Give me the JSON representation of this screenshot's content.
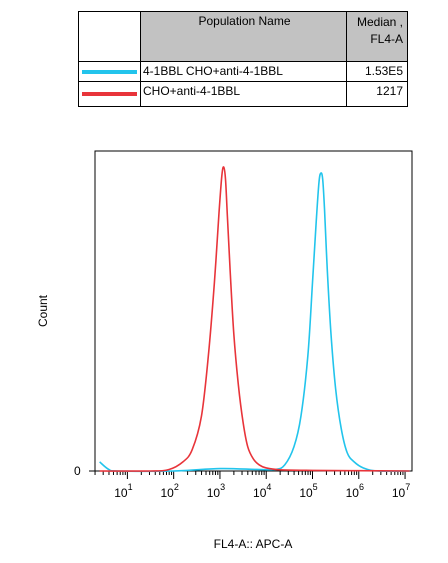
{
  "legend": {
    "header": {
      "name": "Population Name",
      "median_line1": "Median ,",
      "median_line2": "FL4-A"
    },
    "rows": [
      {
        "name": "4-1BBL CHO+anti-4-1BBL",
        "median": "1.53E5",
        "color": "#22c4ec"
      },
      {
        "name": "CHO+anti-4-1BBL",
        "median": "1217",
        "color": "#e8343a"
      }
    ]
  },
  "chart_data": {
    "type": "line",
    "xscale": "log",
    "xlim_log10": [
      0.3,
      7.15
    ],
    "ylim": [
      0,
      1
    ],
    "xlabel": "FL4-A:: APC-A",
    "ylabel": "Count",
    "y_tick_label": "0",
    "x_ticks": [
      {
        "base": "10",
        "exp": "1",
        "log": 1
      },
      {
        "base": "10",
        "exp": "2",
        "log": 2
      },
      {
        "base": "10",
        "exp": "3",
        "log": 3
      },
      {
        "base": "10",
        "exp": "4",
        "log": 4
      },
      {
        "base": "10",
        "exp": "5",
        "log": 5
      },
      {
        "base": "10",
        "exp": "6",
        "log": 6
      },
      {
        "base": "10",
        "exp": "7",
        "log": 7
      }
    ],
    "series": [
      {
        "name": "4-1BBL CHO+anti-4-1BBL",
        "color": "#22c4ec",
        "x_log10": [
          0.4,
          0.6,
          0.8,
          2.0,
          3.0,
          3.8,
          4.2,
          4.4,
          4.6,
          4.75,
          4.9,
          5.0,
          5.08,
          5.14,
          5.18,
          5.22,
          5.26,
          5.32,
          5.4,
          5.5,
          5.62,
          5.75,
          5.9,
          6.1,
          6.4,
          7.1
        ],
        "y": [
          0.03,
          0.005,
          0.0,
          0.0,
          0.008,
          0.005,
          0.005,
          0.02,
          0.08,
          0.18,
          0.38,
          0.62,
          0.82,
          0.95,
          0.98,
          0.96,
          0.86,
          0.66,
          0.45,
          0.27,
          0.14,
          0.06,
          0.03,
          0.01,
          0.0,
          0.0
        ]
      },
      {
        "name": "CHO+anti-4-1BBL",
        "color": "#e8343a",
        "x_log10": [
          0.4,
          1.5,
          1.9,
          2.2,
          2.4,
          2.6,
          2.75,
          2.88,
          2.98,
          3.04,
          3.08,
          3.12,
          3.16,
          3.22,
          3.3,
          3.4,
          3.5,
          3.6,
          3.72,
          3.85,
          4.0,
          4.3,
          5.0,
          6.0,
          7.1
        ],
        "y": [
          0.0,
          0.0,
          0.005,
          0.03,
          0.07,
          0.18,
          0.38,
          0.62,
          0.85,
          0.97,
          1.0,
          0.96,
          0.84,
          0.66,
          0.45,
          0.28,
          0.16,
          0.08,
          0.04,
          0.02,
          0.01,
          0.004,
          0.002,
          0.001,
          0.0
        ]
      }
    ]
  }
}
